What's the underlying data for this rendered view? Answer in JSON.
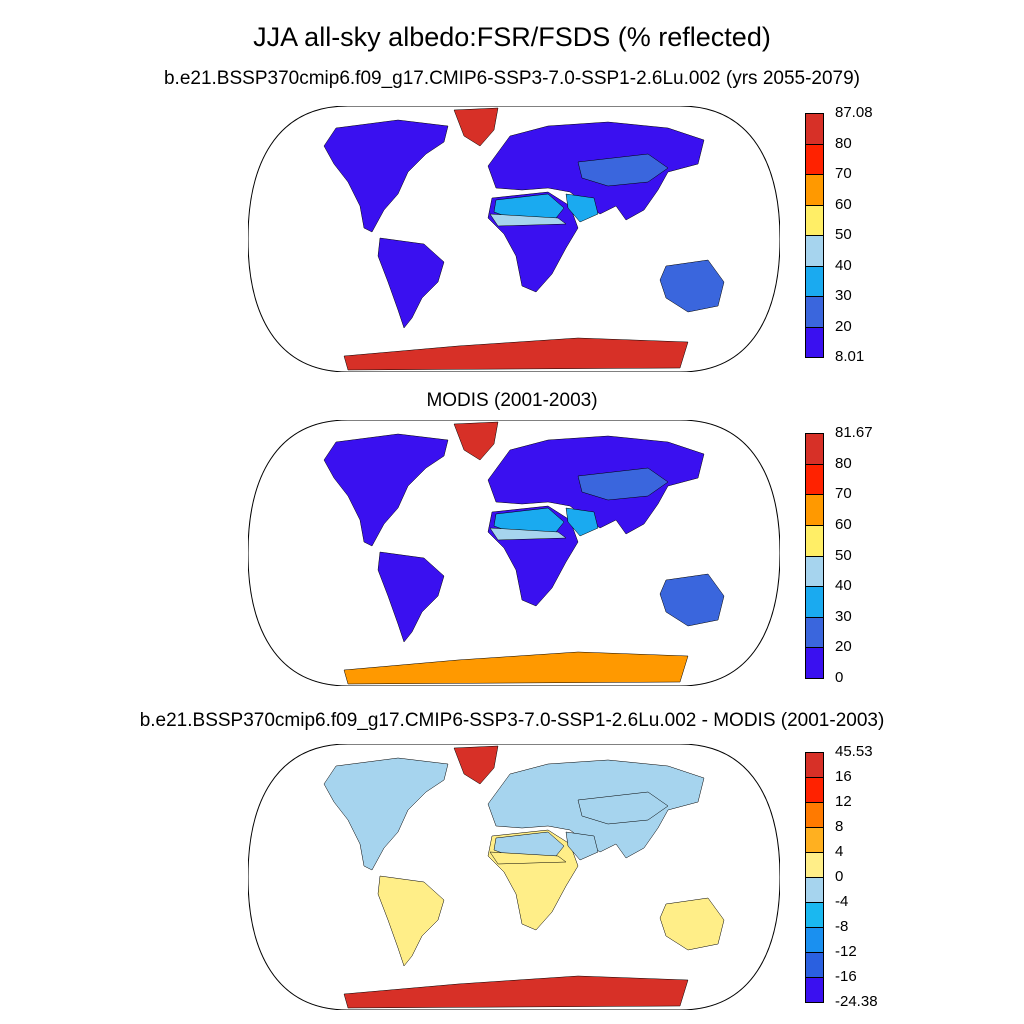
{
  "title": "JJA all-sky albedo:FSR/FSDS (% reflected)",
  "panels": [
    {
      "title": "b.e21.BSSP370cmip6.f09_g17.CMIP6-SSP3-7.0-SSP1-2.6Lu.002 (yrs 2055-2079)",
      "colorbar": {
        "labels": [
          "87.08",
          "80",
          "70",
          "60",
          "50",
          "40",
          "30",
          "20",
          "8.01"
        ],
        "colors": [
          "#d73027",
          "#ff2200",
          "#ff9900",
          "#ffee66",
          "#a6d4ee",
          "#1aaaf0",
          "#3a66dd",
          "#3a10f0"
        ]
      },
      "regions": {
        "land": "#3a10f0",
        "sahara": "#1aaaf0",
        "sahara_edge": "#a6d4ee",
        "arabia": "#1aaaf0",
        "central_asia": "#3a66dd",
        "greenland": "#d73027",
        "antarctica": "#d73027",
        "australia": "#3a66dd"
      }
    },
    {
      "title": "MODIS (2001-2003)",
      "colorbar": {
        "labels": [
          "81.67",
          "80",
          "70",
          "60",
          "50",
          "40",
          "30",
          "20",
          "0"
        ],
        "colors": [
          "#d73027",
          "#ff2200",
          "#ff9900",
          "#ffee66",
          "#a6d4ee",
          "#1aaaf0",
          "#3a66dd",
          "#3a10f0"
        ]
      },
      "regions": {
        "land": "#3a10f0",
        "sahara": "#1aaaf0",
        "sahara_edge": "#a6d4ee",
        "arabia": "#1aaaf0",
        "central_asia": "#3a66dd",
        "greenland": "#d73027",
        "antarctica": "#ff9900",
        "australia": "#3a66dd"
      }
    },
    {
      "title": "b.e21.BSSP370cmip6.f09_g17.CMIP6-SSP3-7.0-SSP1-2.6Lu.002 - MODIS (2001-2003)",
      "colorbar": {
        "labels": [
          "45.53",
          "16",
          "12",
          "8",
          "4",
          "0",
          "-4",
          "-8",
          "-12",
          "-16",
          "-24.38"
        ],
        "colors": [
          "#d73027",
          "#ff2200",
          "#ff7a00",
          "#ffb020",
          "#ffee88",
          "#a6d4ee",
          "#1ab8f0",
          "#1a90f0",
          "#2a60e0",
          "#3a10f0"
        ]
      },
      "regions": {
        "land": "#ffee88",
        "sahara": "#a6d4ee",
        "sahara_edge": "#ffee88",
        "arabia": "#a6d4ee",
        "central_asia": "#a6d4ee",
        "greenland": "#d73027",
        "antarctica": "#d73027",
        "australia": "#ffee88",
        "north_america": "#a6d4ee",
        "eurasia": "#a6d4ee"
      }
    }
  ]
}
